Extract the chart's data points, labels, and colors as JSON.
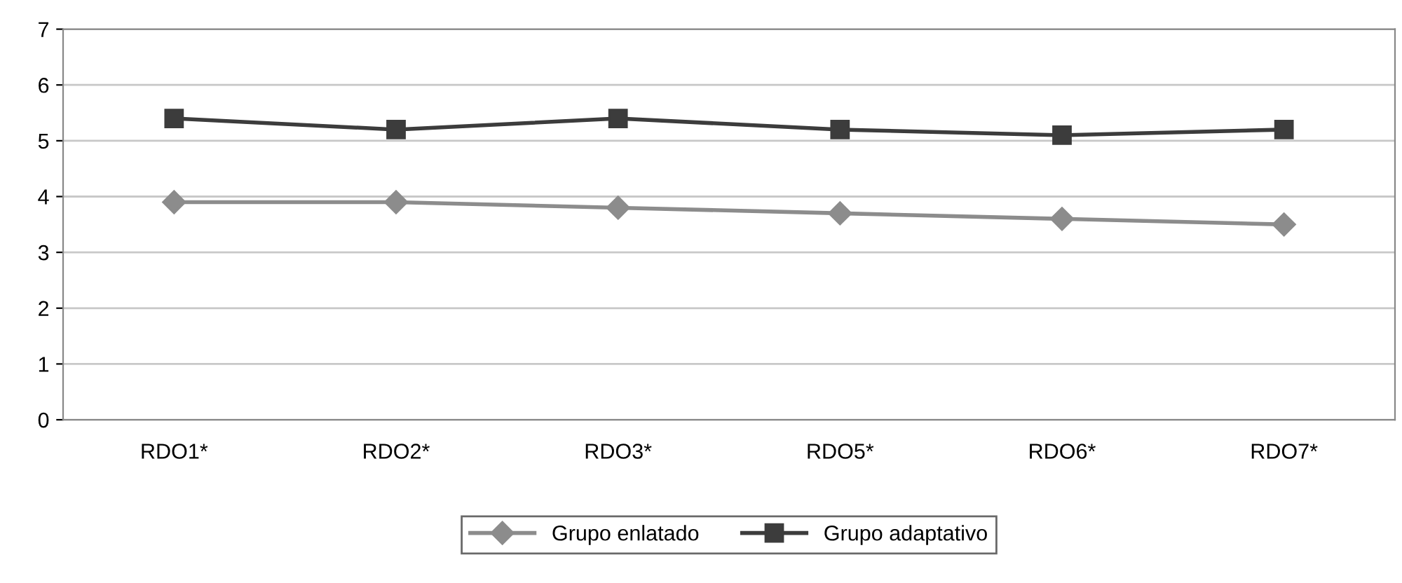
{
  "chart_data": {
    "type": "line",
    "categories": [
      "RDO1*",
      "RDO2*",
      "RDO3*",
      "RDO5*",
      "RDO6*",
      "RDO7*"
    ],
    "series": [
      {
        "name": "Grupo enlatado",
        "color": "#8c8c8c",
        "marker": "diamond",
        "values": [
          3.9,
          3.9,
          3.8,
          3.7,
          3.6,
          3.5
        ]
      },
      {
        "name": "Grupo adaptativo",
        "color": "#3c3c3c",
        "marker": "square",
        "values": [
          5.4,
          5.2,
          5.4,
          5.2,
          5.1,
          5.2
        ]
      }
    ],
    "ylim": [
      0,
      7
    ],
    "yticks": [
      0,
      1,
      2,
      3,
      4,
      5,
      6,
      7
    ],
    "grid": "y",
    "legend": "bottom",
    "line_style": "solid"
  }
}
